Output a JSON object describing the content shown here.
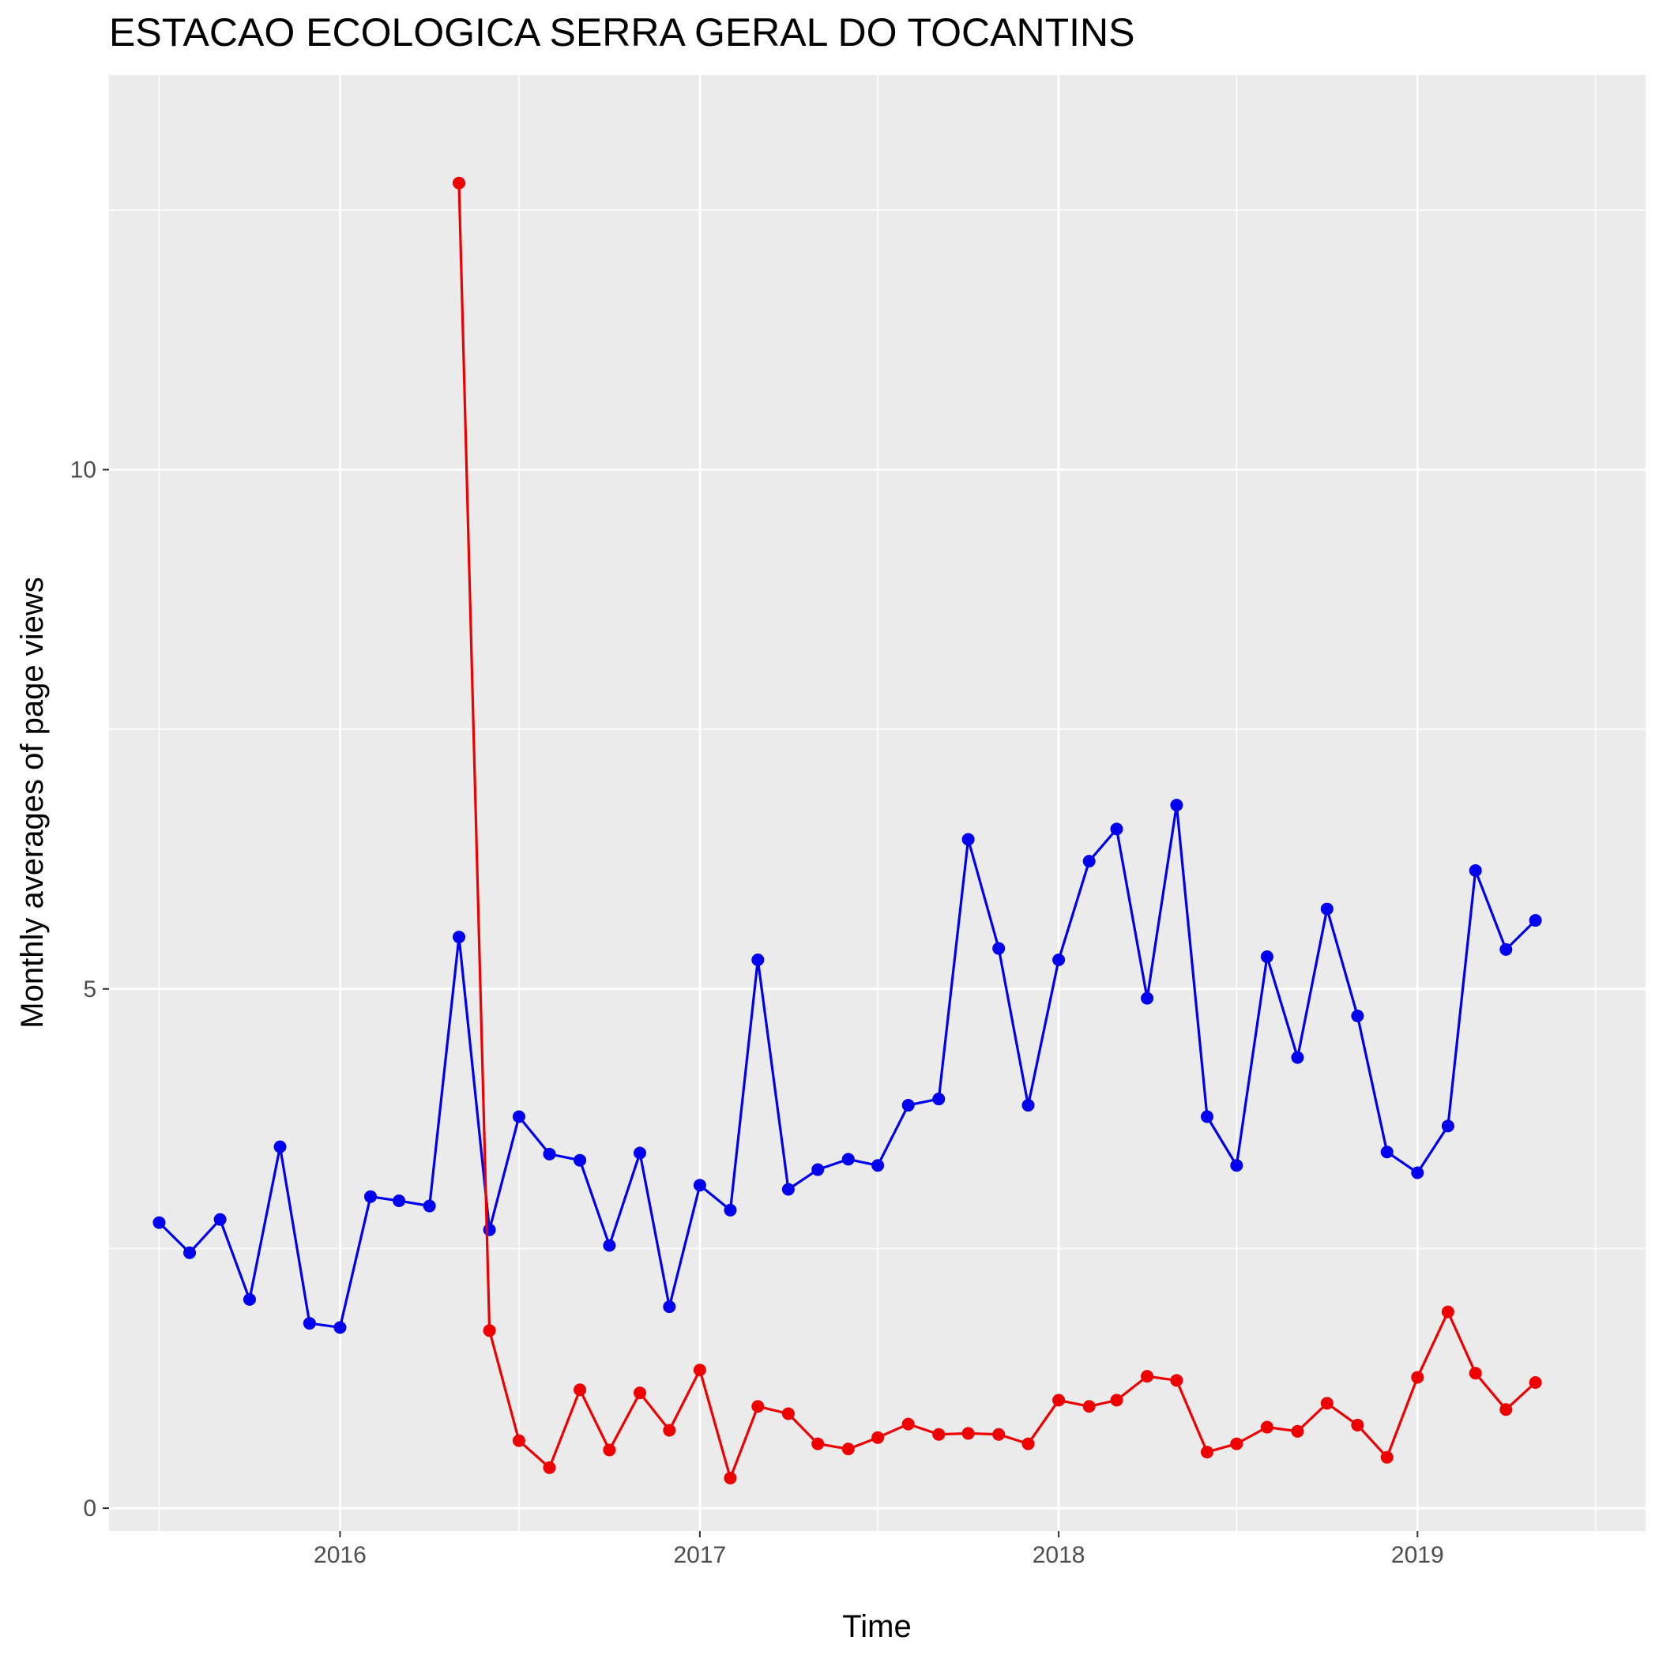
{
  "chart_data": {
    "type": "line",
    "title": "ESTACAO ECOLOGICA SERRA GERAL DO TOCANTINS",
    "xlabel": "Time",
    "ylabel": "Monthly averages of page views",
    "x_ticks": [
      "2016",
      "2017",
      "2018",
      "2019"
    ],
    "y_ticks": [
      "0",
      "5",
      "10"
    ],
    "xlim": [
      "2015-05-11",
      "2019-08-21"
    ],
    "ylim": [
      -0.22,
      13.8
    ],
    "grid": true,
    "legend": "none",
    "x": [
      "2015-07-01",
      "2015-08-01",
      "2015-09-01",
      "2015-10-01",
      "2015-11-01",
      "2015-12-01",
      "2016-01-01",
      "2016-02-01",
      "2016-03-01",
      "2016-04-01",
      "2016-05-01",
      "2016-06-01",
      "2016-07-01",
      "2016-08-01",
      "2016-09-01",
      "2016-10-01",
      "2016-11-01",
      "2016-12-01",
      "2017-01-01",
      "2017-02-01",
      "2017-03-01",
      "2017-04-01",
      "2017-05-01",
      "2017-06-01",
      "2017-07-01",
      "2017-08-01",
      "2017-09-01",
      "2017-10-01",
      "2017-11-01",
      "2017-12-01",
      "2018-01-01",
      "2018-02-01",
      "2018-03-01",
      "2018-04-01",
      "2018-05-01",
      "2018-06-01",
      "2018-07-01",
      "2018-08-01",
      "2018-09-01",
      "2018-10-01",
      "2018-11-01",
      "2018-12-01",
      "2019-01-01",
      "2019-02-01",
      "2019-03-01",
      "2019-04-01",
      "2019-05-01"
    ],
    "series": [
      {
        "color": "#0000ee",
        "values": [
          2.75,
          2.46,
          2.78,
          2.01,
          3.48,
          1.78,
          1.74,
          3.0,
          2.96,
          2.91,
          5.5,
          2.68,
          3.77,
          3.41,
          3.35,
          2.53,
          3.42,
          1.94,
          3.11,
          2.87,
          5.28,
          3.07,
          3.26,
          3.36,
          3.3,
          3.88,
          3.94,
          6.44,
          5.39,
          3.88,
          5.28,
          6.23,
          6.54,
          4.91,
          6.77,
          3.77,
          3.3,
          5.31,
          4.34,
          5.77,
          4.74,
          3.43,
          3.23,
          3.68,
          6.14,
          5.38,
          5.66
        ]
      },
      {
        "color": "#ee0000",
        "values": [
          null,
          null,
          null,
          null,
          null,
          null,
          null,
          null,
          null,
          null,
          12.76,
          1.71,
          0.65,
          0.39,
          1.14,
          0.56,
          1.11,
          0.75,
          1.33,
          0.29,
          0.98,
          0.91,
          0.62,
          0.57,
          0.68,
          0.81,
          0.71,
          0.72,
          0.71,
          0.62,
          1.04,
          0.98,
          1.04,
          1.27,
          1.23,
          0.54,
          0.62,
          0.78,
          0.74,
          1.01,
          0.8,
          0.49,
          1.26,
          1.89,
          1.3,
          0.95,
          1.21
        ]
      }
    ]
  }
}
